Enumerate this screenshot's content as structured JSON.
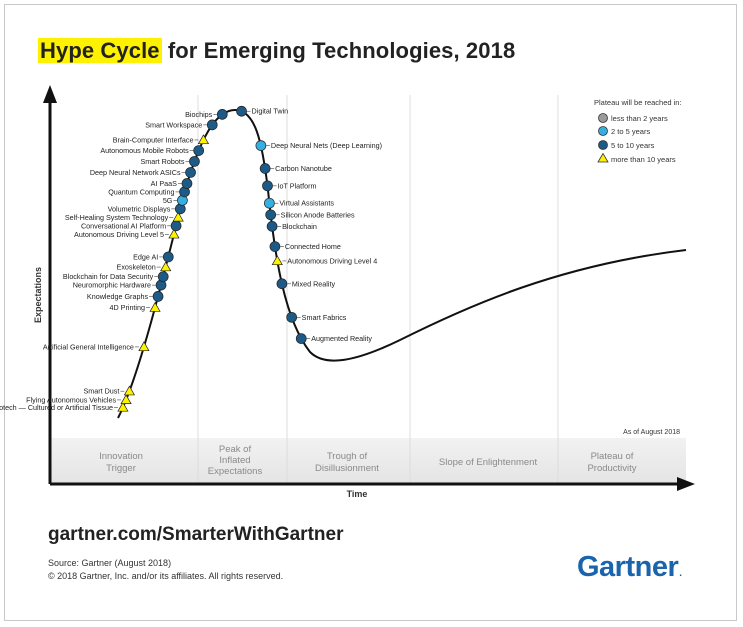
{
  "header": {
    "title_highlight": "Hype Cycle",
    "title_rest": " for Emerging Technologies, 2018"
  },
  "footer": {
    "url": "gartner.com/SmarterWithGartner",
    "source": "Source: Gartner (August 2018)",
    "copyright": "© 2018 Gartner, Inc. and/or its affiliates. All rights reserved.",
    "logo": "Gartner",
    "logo_dot": "."
  },
  "chart_data": {
    "type": "scatter",
    "xlabel": "Time",
    "ylabel": "Expectations",
    "as_of": "As of August 2018",
    "legend_position": "top-right",
    "legend_title": "Plateau will be reached in:",
    "legend": [
      {
        "key": "lt2",
        "label": "less than 2 years",
        "shape": "circle",
        "color": "#9a9a9a"
      },
      {
        "key": "2to5",
        "label": "2 to 5 years",
        "shape": "circle",
        "color": "#35aee2"
      },
      {
        "key": "5to10",
        "label": "5 to 10 years",
        "shape": "circle",
        "color": "#1d5a86"
      },
      {
        "key": "gt10",
        "label": "more than 10 years",
        "shape": "triangle",
        "color": "#fff200"
      }
    ],
    "phases": [
      {
        "label": "Innovation\nTrigger"
      },
      {
        "label": "Peak of\nInflated\nExpectations"
      },
      {
        "label": "Trough of\nDisillusionment"
      },
      {
        "label": "Slope of Enlightenment"
      },
      {
        "label": "Plateau of\nProductivity"
      }
    ],
    "technologies": [
      {
        "name": "Biotech — Cultured or Artificial Tissue",
        "t": 0.02,
        "cat": "gt10"
      },
      {
        "name": "Flying Autonomous Vehicles",
        "t": 0.034,
        "cat": "gt10"
      },
      {
        "name": "Smart Dust",
        "t": 0.05,
        "cat": "gt10"
      },
      {
        "name": "Artificial General Intelligence",
        "t": 0.13,
        "cat": "gt10"
      },
      {
        "name": "4D Printing",
        "t": 0.2,
        "cat": "gt10"
      },
      {
        "name": "Knowledge Graphs",
        "t": 0.22,
        "cat": "5to10"
      },
      {
        "name": "Neuromorphic Hardware",
        "t": 0.24,
        "cat": "5to10"
      },
      {
        "name": "Blockchain for Data Security",
        "t": 0.255,
        "cat": "5to10"
      },
      {
        "name": "Exoskeleton",
        "t": 0.272,
        "cat": "gt10"
      },
      {
        "name": "Edge AI",
        "t": 0.29,
        "cat": "5to10"
      },
      {
        "name": "Autonomous Driving Level 5",
        "t": 0.33,
        "cat": "gt10"
      },
      {
        "name": "Conversational AI Platform",
        "t": 0.345,
        "cat": "5to10"
      },
      {
        "name": "Self-Healing System Technology",
        "t": 0.36,
        "cat": "gt10"
      },
      {
        "name": "Volumetric Displays",
        "t": 0.375,
        "cat": "5to10"
      },
      {
        "name": "5G",
        "t": 0.39,
        "cat": "2to5"
      },
      {
        "name": "Quantum Computing",
        "t": 0.405,
        "cat": "5to10"
      },
      {
        "name": "AI PaaS",
        "t": 0.42,
        "cat": "5to10"
      },
      {
        "name": "Deep Neural Network ASICs",
        "t": 0.44,
        "cat": "5to10"
      },
      {
        "name": "Smart Robots",
        "t": 0.46,
        "cat": "5to10"
      },
      {
        "name": "Autonomous Mobile Robots",
        "t": 0.48,
        "cat": "5to10"
      },
      {
        "name": "Brain-Computer Interface",
        "t": 0.5,
        "cat": "gt10"
      },
      {
        "name": "Smart Workspace",
        "t": 0.53,
        "cat": "5to10"
      },
      {
        "name": "Biochips",
        "t": 0.555,
        "cat": "5to10"
      },
      {
        "name": "Digital Twin",
        "t": 0.59,
        "cat": "5to10"
      },
      {
        "name": "Deep Neural Nets (Deep Learning)",
        "t": 0.66,
        "cat": "2to5"
      },
      {
        "name": "Carbon Nanotube",
        "t": 0.7,
        "cat": "5to10"
      },
      {
        "name": "IoT Platform",
        "t": 0.73,
        "cat": "5to10"
      },
      {
        "name": "Virtual Assistants",
        "t": 0.76,
        "cat": "2to5"
      },
      {
        "name": "Silicon Anode Batteries",
        "t": 0.78,
        "cat": "5to10"
      },
      {
        "name": "Blockchain",
        "t": 0.8,
        "cat": "5to10"
      },
      {
        "name": "Connected Home",
        "t": 0.835,
        "cat": "5to10"
      },
      {
        "name": "Autonomous Driving Level 4",
        "t": 0.86,
        "cat": "gt10"
      },
      {
        "name": "Mixed Reality",
        "t": 0.9,
        "cat": "5to10"
      },
      {
        "name": "Smart Fabrics",
        "t": 0.96,
        "cat": "5to10"
      },
      {
        "name": "Augmented Reality",
        "t": 1.0,
        "cat": "5to10"
      }
    ]
  }
}
